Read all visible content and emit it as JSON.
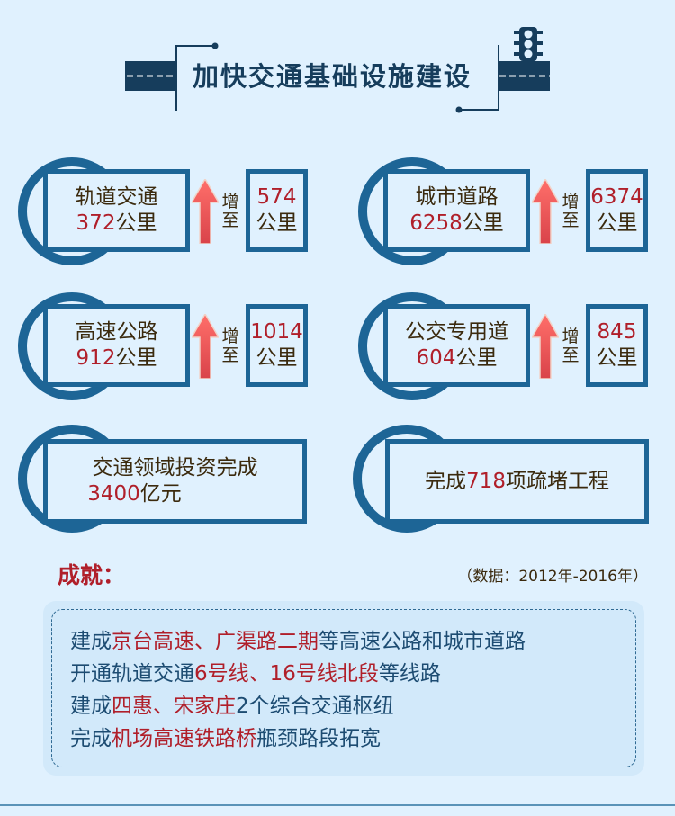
{
  "header": {
    "title": "加快交通基础设施建设",
    "icons": [
      "road-icon",
      "traffic-light-icon"
    ]
  },
  "colors": {
    "accent": "#1d6596",
    "highlight": "#b01f2a",
    "title": "#163d5c",
    "background": "#e0f1fe"
  },
  "increase_label": "增至",
  "cards": [
    {
      "name": "轨道交通",
      "from_value": "372",
      "unit": "公里",
      "to_value": "574"
    },
    {
      "name": "城市道路",
      "from_value": "6258",
      "unit": "公里",
      "to_value": "6374"
    },
    {
      "name": "高速公路",
      "from_value": "912",
      "unit": "公里",
      "to_value": "1014"
    },
    {
      "name": "公交专用道",
      "from_value": "604",
      "unit": "公里",
      "to_value": "845"
    }
  ],
  "investment": {
    "label": "交通领域投资完成",
    "value": "3400",
    "unit": "亿元"
  },
  "projects": {
    "prefix": "完成",
    "value": "718",
    "suffix": "项疏堵工程"
  },
  "achievements": {
    "title": "成就：",
    "source": "（数据：2012年-2016年）",
    "lines": [
      [
        {
          "t": "建成",
          "r": false
        },
        {
          "t": "京台高速、广渠路二期",
          "r": true
        },
        {
          "t": "等高速公路和城市道路",
          "r": false
        }
      ],
      [
        {
          "t": "开通轨道交通",
          "r": false
        },
        {
          "t": "6号线、16号线北段",
          "r": true
        },
        {
          "t": "等线路",
          "r": false
        }
      ],
      [
        {
          "t": "建成",
          "r": false
        },
        {
          "t": "四惠、宋家庄",
          "r": true
        },
        {
          "t": "2个综合交通枢纽",
          "r": false
        }
      ],
      [
        {
          "t": "完成",
          "r": false
        },
        {
          "t": "机场高速铁路桥",
          "r": true
        },
        {
          "t": "瓶颈路段拓宽",
          "r": false
        }
      ]
    ]
  }
}
